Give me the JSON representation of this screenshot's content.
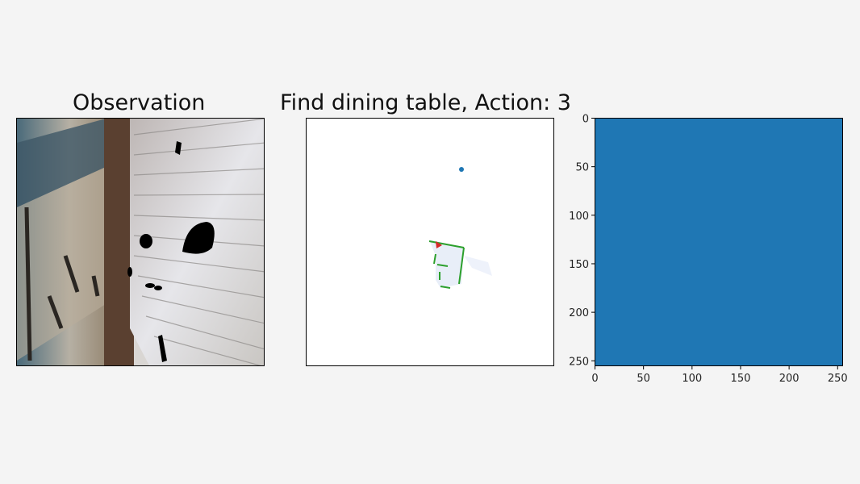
{
  "observation": {
    "title": "Observation"
  },
  "map": {
    "title": "Find dining table, Action: 3",
    "colors": {
      "goal": "#1f77b4",
      "agent": "#d62728",
      "explored": "#e8eef8",
      "obstacle": "#2ca02c"
    }
  },
  "value_map": {
    "fill_color": "#1f77b4",
    "xticks": [
      "0",
      "50",
      "100",
      "150",
      "200",
      "250"
    ],
    "yticks": [
      "0",
      "50",
      "100",
      "150",
      "200",
      "250"
    ]
  }
}
